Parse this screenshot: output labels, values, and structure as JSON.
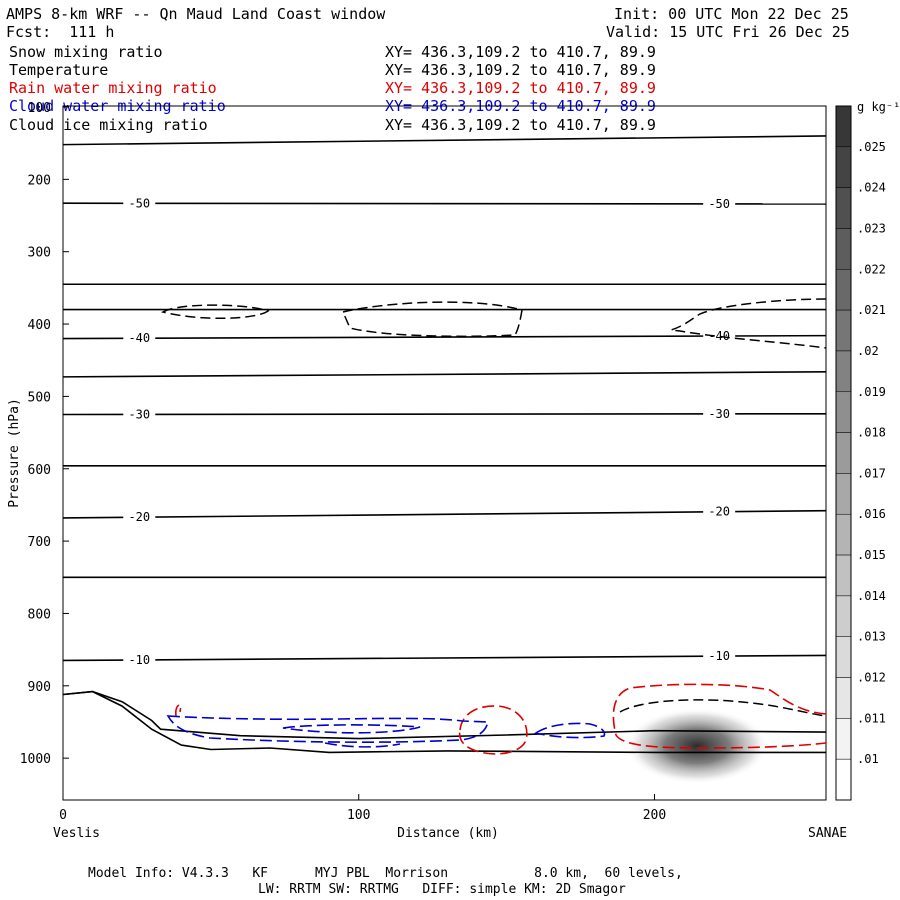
{
  "header": {
    "title": "AMPS 8-km WRF -- Qn Maud Land Coast window",
    "init": "Init: 00 UTC Mon 22 Dec 25",
    "fcst": "Fcst:  111 h",
    "valid": "Valid: 15 UTC Fri 26 Dec 25"
  },
  "legend": [
    {
      "name": "Snow mixing ratio",
      "xy": "XY= 436.3,109.2 to 410.7, 89.9",
      "color": "#000000"
    },
    {
      "name": "Temperature",
      "xy": "XY= 436.3,109.2 to 410.7, 89.9",
      "color": "#000000"
    },
    {
      "name": "Rain water mixing ratio",
      "xy": "XY= 436.3,109.2 to 410.7, 89.9",
      "color": "#e00000"
    },
    {
      "name": "Cloud water mixing ratio",
      "xy": "XY= 436.3,109.2 to 410.7, 89.9",
      "color": "#0000d0"
    },
    {
      "name": "Cloud ice mixing ratio",
      "xy": "XY= 436.3,109.2 to 410.7, 89.9",
      "color": "#000000"
    }
  ],
  "chart_data": {
    "type": "cross-section",
    "xlabel": "Distance (km)",
    "ylabel": "Pressure (hPa)",
    "xlim": [
      0,
      258
    ],
    "ylim": [
      1050,
      100
    ],
    "x_ticks": [
      0,
      100,
      200
    ],
    "y_ticks": [
      100,
      200,
      300,
      400,
      500,
      600,
      700,
      800,
      900,
      1000
    ],
    "x_endpoints": {
      "left": "Veslis",
      "right": "SANAE"
    },
    "isotherms": [
      {
        "label": "",
        "start": 152,
        "end": 140
      },
      {
        "label": "-50",
        "start": 233,
        "end": 234
      },
      {
        "label": "",
        "start": 345,
        "end": 345
      },
      {
        "label": "",
        "start": 380,
        "end": 380
      },
      {
        "label": "-40",
        "start": 420,
        "end": 416
      },
      {
        "label": "",
        "start": 473,
        "end": 466
      },
      {
        "label": "-30",
        "start": 525,
        "end": 524
      },
      {
        "label": "",
        "start": 596,
        "end": 596
      },
      {
        "label": "-20",
        "start": 668,
        "end": 658
      },
      {
        "label": "",
        "start": 750,
        "end": 750
      },
      {
        "label": "-10",
        "start": 865,
        "end": 858
      }
    ],
    "terrain": [
      [
        0,
        912
      ],
      [
        10,
        908
      ],
      [
        20,
        922
      ],
      [
        30,
        948
      ],
      [
        33,
        960
      ],
      [
        60,
        969
      ],
      [
        100,
        973
      ],
      [
        150,
        968
      ],
      [
        200,
        962
      ],
      [
        258,
        964
      ]
    ],
    "terrain_lower": [
      [
        0,
        912
      ],
      [
        10,
        908
      ],
      [
        20,
        928
      ],
      [
        30,
        960
      ],
      [
        40,
        982
      ],
      [
        50,
        988
      ],
      [
        70,
        986
      ],
      [
        90,
        992
      ],
      [
        130,
        990
      ],
      [
        200,
        992
      ],
      [
        258,
        992
      ]
    ],
    "colorbar": {
      "unit": "g kg⁻¹",
      "labels": [
        ".025",
        ".024",
        ".023",
        ".022",
        ".021",
        ".02",
        ".019",
        ".018",
        ".017",
        ".016",
        ".015",
        ".014",
        ".013",
        ".012",
        ".011",
        ".01"
      ]
    }
  },
  "footer": {
    "model_info": "Model Info: V4.3.3   KF      MYJ PBL  Morrison           8.0 km,  60 levels,",
    "physics": "LW: RRTM SW: RRTMG   DIFF: simple KM: 2D Smagor"
  }
}
